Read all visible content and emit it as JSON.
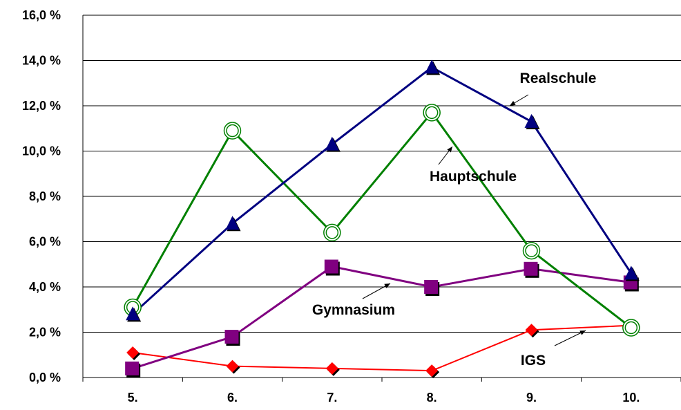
{
  "chart_data": {
    "type": "line",
    "categories": [
      "5.",
      "6.",
      "7.",
      "8.",
      "9.",
      "10."
    ],
    "ylim": [
      0,
      16
    ],
    "yticks": [
      0,
      2,
      4,
      6,
      8,
      10,
      12,
      14,
      16
    ],
    "ytick_labels": [
      "0,0 %",
      "2,0 %",
      "4,0 %",
      "6,0 %",
      "8,0 %",
      "10,0 %",
      "12,0 %",
      "14,0 %",
      "16,0 %"
    ],
    "grid": true,
    "series": [
      {
        "name": "Realschule",
        "color": "#000080",
        "marker": "triangle",
        "values": [
          2.8,
          6.8,
          10.3,
          13.7,
          11.3,
          4.6
        ]
      },
      {
        "name": "Hauptschule",
        "color": "#008000",
        "marker": "circle",
        "values": [
          3.1,
          10.9,
          6.4,
          11.7,
          5.6,
          2.2
        ]
      },
      {
        "name": "Gymnasium",
        "color": "#800080",
        "marker": "square",
        "values": [
          0.4,
          1.8,
          4.9,
          4.0,
          4.8,
          4.2
        ]
      },
      {
        "name": "IGS",
        "color": "#ff0000",
        "marker": "diamond",
        "values": [
          1.1,
          0.5,
          0.4,
          0.3,
          2.1,
          2.3
        ]
      }
    ]
  }
}
